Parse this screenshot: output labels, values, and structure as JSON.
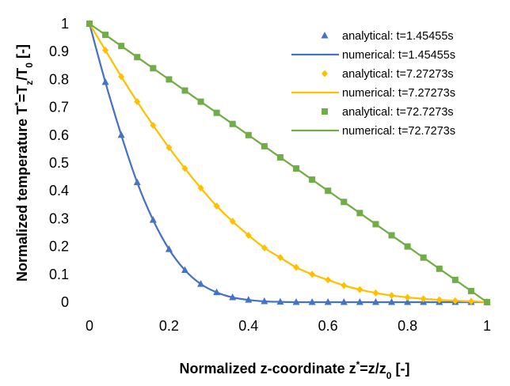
{
  "chart_data": {
    "type": "scatter",
    "xlabel": {
      "main": "Normalized z-coordinate z",
      "sup": "*",
      "mid": "=z/z",
      "sub": "0",
      "end": " [-]"
    },
    "ylabel": {
      "main": "Normalized temperature T",
      "sup": "*",
      "mid": "=T",
      "sub1": "z",
      "mid2": "/T",
      "sub2": "0",
      "end": " [-]"
    },
    "xlim": [
      0,
      1
    ],
    "ylim": [
      0,
      1
    ],
    "x_ticks": [
      "0",
      "0.2",
      "0.4",
      "0.6",
      "0.8",
      "1"
    ],
    "y_ticks": [
      "0",
      "0.1",
      "0.2",
      "0.3",
      "0.4",
      "0.5",
      "0.6",
      "0.7",
      "0.8",
      "0.9",
      "1"
    ],
    "grid": false,
    "legend_position": "top-right",
    "series": [
      {
        "name": "analytical: t=1.45455s",
        "kind": "markers",
        "marker": "triangle",
        "color": "#4472C4",
        "x": [
          0,
          0.04,
          0.08,
          0.12,
          0.16,
          0.2,
          0.24,
          0.28,
          0.32,
          0.36,
          0.4,
          0.44,
          0.48,
          0.52,
          0.56,
          0.6,
          0.64,
          0.68,
          0.72,
          0.76,
          0.8,
          0.84,
          0.88,
          0.92,
          0.96,
          1.0
        ],
        "y": [
          1,
          0.79,
          0.6,
          0.43,
          0.295,
          0.19,
          0.115,
          0.065,
          0.035,
          0.017,
          0.008,
          0.003,
          0.001,
          0,
          0,
          0,
          0,
          0,
          0,
          0,
          0,
          0,
          0,
          0,
          0,
          0
        ]
      },
      {
        "name": "numerical: t=1.45455s",
        "kind": "line",
        "color": "#4472C4",
        "x": [
          0,
          0.04,
          0.08,
          0.12,
          0.16,
          0.2,
          0.24,
          0.28,
          0.32,
          0.36,
          0.4,
          0.44,
          0.48,
          0.52,
          0.56,
          0.6,
          0.64,
          0.68,
          0.72,
          0.76,
          0.8,
          0.84,
          0.88,
          0.92,
          0.96,
          1.0
        ],
        "y": [
          1,
          0.79,
          0.6,
          0.43,
          0.295,
          0.19,
          0.115,
          0.065,
          0.035,
          0.017,
          0.008,
          0.003,
          0.001,
          0,
          0,
          0,
          0,
          0,
          0,
          0,
          0,
          0,
          0,
          0,
          0,
          0
        ]
      },
      {
        "name": "analytical: t=7.27273s",
        "kind": "markers",
        "marker": "diamond",
        "color": "#FFC000",
        "x": [
          0,
          0.04,
          0.08,
          0.12,
          0.16,
          0.2,
          0.24,
          0.28,
          0.32,
          0.36,
          0.4,
          0.44,
          0.48,
          0.52,
          0.56,
          0.6,
          0.64,
          0.68,
          0.72,
          0.76,
          0.8,
          0.84,
          0.88,
          0.92,
          0.96,
          1.0
        ],
        "y": [
          1,
          0.905,
          0.81,
          0.72,
          0.635,
          0.555,
          0.48,
          0.41,
          0.345,
          0.29,
          0.24,
          0.195,
          0.16,
          0.125,
          0.1,
          0.08,
          0.06,
          0.045,
          0.033,
          0.024,
          0.017,
          0.012,
          0.008,
          0.005,
          0.003,
          0
        ]
      },
      {
        "name": "numerical: t=7.27273s",
        "kind": "line",
        "color": "#FFC000",
        "x": [
          0,
          0.04,
          0.08,
          0.12,
          0.16,
          0.2,
          0.24,
          0.28,
          0.32,
          0.36,
          0.4,
          0.44,
          0.48,
          0.52,
          0.56,
          0.6,
          0.64,
          0.68,
          0.72,
          0.76,
          0.8,
          0.84,
          0.88,
          0.92,
          0.96,
          1.0
        ],
        "y": [
          1,
          0.905,
          0.81,
          0.72,
          0.635,
          0.555,
          0.48,
          0.41,
          0.345,
          0.29,
          0.24,
          0.195,
          0.16,
          0.125,
          0.1,
          0.08,
          0.06,
          0.045,
          0.033,
          0.024,
          0.017,
          0.012,
          0.008,
          0.005,
          0.003,
          0
        ]
      },
      {
        "name": "analytical: t=72.7273s",
        "kind": "markers",
        "marker": "square",
        "color": "#70AD47",
        "x": [
          0,
          0.04,
          0.08,
          0.12,
          0.16,
          0.2,
          0.24,
          0.28,
          0.32,
          0.36,
          0.4,
          0.44,
          0.48,
          0.52,
          0.56,
          0.6,
          0.64,
          0.68,
          0.72,
          0.76,
          0.8,
          0.84,
          0.88,
          0.92,
          0.96,
          1.0
        ],
        "y": [
          1,
          0.96,
          0.92,
          0.88,
          0.84,
          0.8,
          0.76,
          0.72,
          0.68,
          0.64,
          0.6,
          0.56,
          0.52,
          0.48,
          0.44,
          0.4,
          0.36,
          0.32,
          0.28,
          0.24,
          0.2,
          0.16,
          0.12,
          0.08,
          0.04,
          0
        ]
      },
      {
        "name": "numerical: t=72.7273s",
        "kind": "line",
        "color": "#70AD47",
        "x": [
          0,
          0.04,
          0.08,
          0.12,
          0.16,
          0.2,
          0.24,
          0.28,
          0.32,
          0.36,
          0.4,
          0.44,
          0.48,
          0.52,
          0.56,
          0.6,
          0.64,
          0.68,
          0.72,
          0.76,
          0.8,
          0.84,
          0.88,
          0.92,
          0.96,
          1.0
        ],
        "y": [
          1,
          0.96,
          0.92,
          0.88,
          0.84,
          0.8,
          0.76,
          0.72,
          0.68,
          0.64,
          0.6,
          0.56,
          0.52,
          0.48,
          0.44,
          0.4,
          0.36,
          0.32,
          0.28,
          0.24,
          0.2,
          0.16,
          0.12,
          0.08,
          0.04,
          0
        ]
      }
    ]
  }
}
